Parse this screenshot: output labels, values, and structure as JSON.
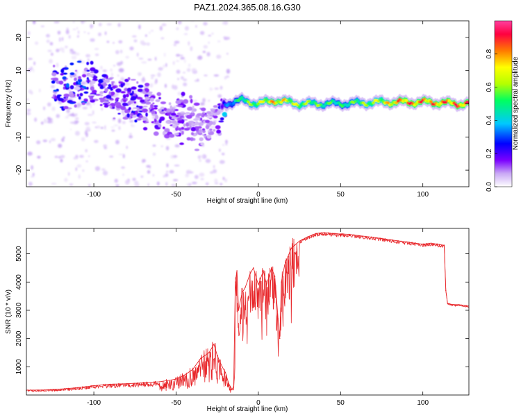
{
  "title": "PAZ1.2024.365.08.16.G30",
  "chart_data": [
    {
      "type": "heatmap",
      "xlabel": "Height of straight line (km)",
      "ylabel": "Frequency (Hz)",
      "xlim": [
        -141,
        128
      ],
      "ylim": [
        -25,
        25
      ],
      "xticks": [
        -100,
        -50,
        0,
        50,
        100
      ],
      "yticks": [
        -20,
        -10,
        0,
        10,
        20
      ],
      "grid": false,
      "colorbar": {
        "label": "Normalized spectral amplitude",
        "range": [
          0,
          1
        ],
        "ticks": [
          "0.0",
          "0.2",
          "0.4",
          "0.6",
          "0.8"
        ],
        "colors": [
          "#ffffff",
          "#c9a8f5",
          "#7b00ff",
          "#0000ff",
          "#00c8ff",
          "#00ff60",
          "#b4ff00",
          "#ffff00",
          "#ff7a00",
          "#ff0040",
          "#ff40a0"
        ]
      },
      "ridge": {
        "description_hidden": true,
        "points": [
          {
            "x": -120,
            "y": 5,
            "a": 0.25
          },
          {
            "x": -105,
            "y": 6,
            "a": 0.25
          },
          {
            "x": -95,
            "y": 5,
            "a": 0.2
          },
          {
            "x": -85,
            "y": 2,
            "a": 0.18
          },
          {
            "x": -75,
            "y": 0,
            "a": 0.2
          },
          {
            "x": -65,
            "y": -2,
            "a": 0.15
          },
          {
            "x": -55,
            "y": -4,
            "a": 0.15
          },
          {
            "x": -45,
            "y": -5,
            "a": 0.15
          },
          {
            "x": -35,
            "y": -7,
            "a": 0.12
          },
          {
            "x": -25,
            "y": -5,
            "a": 0.12
          },
          {
            "x": -21,
            "y": 0,
            "a": 0.3
          },
          {
            "x": -10,
            "y": 1,
            "a": 0.6
          },
          {
            "x": 0,
            "y": 0,
            "a": 0.7
          },
          {
            "x": 10,
            "y": 1,
            "a": 0.85
          },
          {
            "x": 25,
            "y": 0,
            "a": 0.7
          },
          {
            "x": 50,
            "y": 0,
            "a": 0.55
          },
          {
            "x": 75,
            "y": 0.5,
            "a": 0.75
          },
          {
            "x": 90,
            "y": 0.5,
            "a": 0.95
          },
          {
            "x": 105,
            "y": 0.5,
            "a": 0.9
          },
          {
            "x": 120,
            "y": 0,
            "a": 0.95
          }
        ]
      }
    },
    {
      "type": "line",
      "xlabel": "Height of straight line (km)",
      "ylabel": "SNR (10 * v/v)",
      "xlim": [
        -141,
        128
      ],
      "ylim": [
        0,
        5900
      ],
      "xticks": [
        -100,
        -50,
        0,
        50,
        100
      ],
      "yticks": [
        1000,
        2000,
        3000,
        4000,
        5000
      ],
      "grid": false,
      "series": [
        {
          "color": "#e8262a",
          "x": [
            -141,
            -130,
            -120,
            -110,
            -100,
            -90,
            -80,
            -70,
            -60,
            -50,
            -45,
            -40,
            -35,
            -30,
            -27,
            -25,
            -22,
            -20,
            -18,
            -16,
            -15,
            -14,
            -13,
            -12,
            -10,
            -8,
            -5,
            -3,
            0,
            3,
            5,
            8,
            10,
            12,
            13,
            14,
            16,
            18,
            20,
            22,
            25,
            30,
            35,
            40,
            45,
            50,
            55,
            60,
            65,
            70,
            75,
            80,
            85,
            90,
            95,
            100,
            105,
            110,
            113,
            114,
            115,
            118,
            122,
            128
          ],
          "y": [
            170,
            180,
            210,
            260,
            330,
            380,
            400,
            430,
            470,
            560,
            700,
            900,
            1300,
            1500,
            1800,
            1400,
            1000,
            800,
            400,
            200,
            300,
            4000,
            4400,
            3000,
            3600,
            3800,
            4300,
            4500,
            3900,
            4400,
            3900,
            4500,
            4200,
            2700,
            2000,
            4000,
            4600,
            4900,
            5200,
            5300,
            5450,
            5600,
            5720,
            5750,
            5720,
            5700,
            5690,
            5650,
            5620,
            5580,
            5540,
            5500,
            5460,
            5420,
            5380,
            5340,
            5380,
            5330,
            5300,
            3700,
            3250,
            3200,
            3200,
            3150
          ]
        }
      ]
    }
  ]
}
